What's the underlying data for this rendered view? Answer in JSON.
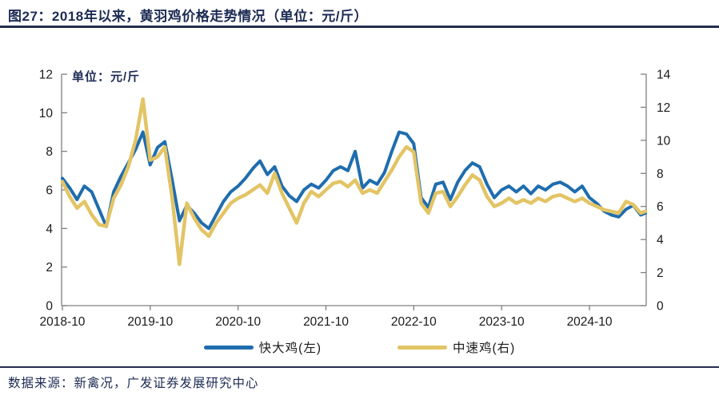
{
  "header": {
    "title": "图27：2018年以来，黄羽鸡价格走势情况（单位：元/斤）"
  },
  "chart": {
    "unit_label": "单位：元/斤",
    "legend": [
      {
        "label": "快大鸡(左)",
        "color": "#1F6DAE"
      },
      {
        "label": "中速鸡(右)",
        "color": "#E3C465"
      }
    ]
  },
  "chart_data": {
    "type": "line",
    "title": "2018年以来，黄羽鸡价格走势情况",
    "unit": "元/斤",
    "grid": false,
    "legend_position": "bottom",
    "x_tick_labels": [
      "2018-10",
      "2019-10",
      "2020-10",
      "2021-10",
      "2022-10",
      "2023-10",
      "2024-10"
    ],
    "left_axis": {
      "min": 0,
      "max": 12,
      "tick_step": 2,
      "ticks": [
        0,
        2,
        4,
        6,
        8,
        10,
        12
      ]
    },
    "right_axis": {
      "min": 0,
      "max": 14,
      "tick_step": 2,
      "ticks": [
        0,
        2,
        4,
        6,
        8,
        10,
        12,
        14
      ]
    },
    "x": [
      "2018-10",
      "2018-11",
      "2018-12",
      "2019-01",
      "2019-02",
      "2019-03",
      "2019-04",
      "2019-05",
      "2019-06",
      "2019-07",
      "2019-08",
      "2019-09",
      "2019-10",
      "2019-11",
      "2019-12",
      "2020-01",
      "2020-02",
      "2020-03",
      "2020-04",
      "2020-05",
      "2020-06",
      "2020-07",
      "2020-08",
      "2020-09",
      "2020-10",
      "2020-11",
      "2020-12",
      "2021-01",
      "2021-02",
      "2021-03",
      "2021-04",
      "2021-05",
      "2021-06",
      "2021-07",
      "2021-08",
      "2021-09",
      "2021-10",
      "2021-11",
      "2021-12",
      "2022-01",
      "2022-02",
      "2022-03",
      "2022-04",
      "2022-05",
      "2022-06",
      "2022-07",
      "2022-08",
      "2022-09",
      "2022-10",
      "2022-11",
      "2022-12",
      "2023-01",
      "2023-02",
      "2023-03",
      "2023-04",
      "2023-05",
      "2023-06",
      "2023-07",
      "2023-08",
      "2023-09",
      "2023-10",
      "2023-11",
      "2023-12",
      "2024-01",
      "2024-02",
      "2024-03",
      "2024-04",
      "2024-05",
      "2024-06",
      "2024-07",
      "2024-08",
      "2024-09",
      "2024-10",
      "2024-11",
      "2024-12",
      "2025-01",
      "2025-02",
      "2025-03",
      "2025-04",
      "2025-05",
      "2025-06"
    ],
    "series": [
      {
        "name": "快大鸡(左)",
        "axis": "left",
        "color": "#1F6DAE",
        "stroke_width": 4,
        "values": [
          6.6,
          6.1,
          5.5,
          6.2,
          5.9,
          5.0,
          4.1,
          5.9,
          6.7,
          7.4,
          8.1,
          9.0,
          7.3,
          8.2,
          8.5,
          6.5,
          4.4,
          5.2,
          4.8,
          4.3,
          4.0,
          4.7,
          5.4,
          5.9,
          6.2,
          6.6,
          7.1,
          7.5,
          6.8,
          7.2,
          6.2,
          5.7,
          5.4,
          6.0,
          6.3,
          6.1,
          6.5,
          7.0,
          7.2,
          7.0,
          8.0,
          6.1,
          6.5,
          6.3,
          6.9,
          8.0,
          9.0,
          8.9,
          8.4,
          5.6,
          5.1,
          6.3,
          6.4,
          5.5,
          6.4,
          7.0,
          7.4,
          7.2,
          6.3,
          5.6,
          6.0,
          6.2,
          5.9,
          6.2,
          5.8,
          6.2,
          6.0,
          6.3,
          6.4,
          6.2,
          5.9,
          6.2,
          5.6,
          5.3,
          4.9,
          4.7,
          4.6,
          5.0,
          5.2,
          4.7,
          4.8
        ]
      },
      {
        "name": "中速鸡(右)",
        "axis": "right",
        "color": "#E3C465",
        "stroke_width": 4.5,
        "values": [
          7.5,
          6.6,
          5.9,
          6.3,
          5.5,
          4.9,
          4.8,
          6.5,
          7.3,
          8.4,
          10.0,
          12.5,
          8.8,
          9.0,
          9.6,
          6.5,
          2.5,
          6.2,
          5.3,
          4.6,
          4.2,
          5.0,
          5.6,
          6.2,
          6.5,
          6.7,
          7.0,
          7.3,
          6.8,
          8.0,
          6.8,
          5.9,
          5.0,
          6.2,
          6.9,
          6.6,
          7.0,
          7.4,
          7.5,
          7.2,
          7.6,
          6.8,
          7.0,
          6.8,
          7.5,
          8.2,
          9.0,
          9.6,
          9.3,
          6.2,
          5.6,
          6.8,
          6.9,
          6.0,
          6.6,
          7.3,
          7.9,
          7.6,
          6.6,
          6.0,
          6.2,
          6.5,
          6.2,
          6.4,
          6.2,
          6.5,
          6.3,
          6.6,
          6.7,
          6.5,
          6.3,
          6.5,
          6.2,
          6.0,
          5.8,
          5.7,
          5.6,
          6.3,
          6.1,
          5.6,
          5.7
        ]
      }
    ]
  },
  "footer": {
    "source": "数据来源：新禽况，广发证券发展研究中心"
  }
}
